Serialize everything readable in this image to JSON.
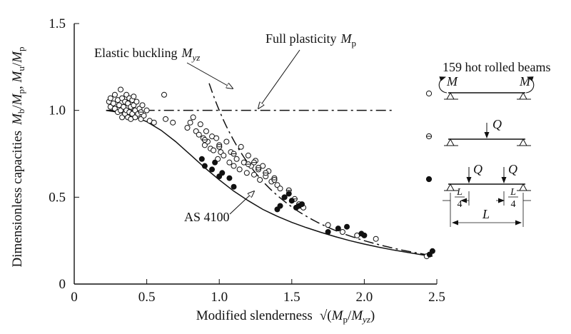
{
  "chart_data": {
    "type": "scatter",
    "title": "",
    "xlabel": "Modified slenderness √(Mp/Myz)",
    "ylabel": "Dimensionless capacities Mb/Mp, Mu/Mp",
    "xlabel_parts": {
      "text": "Modified slenderness",
      "root": "√(",
      "num": "M",
      "num_sub": "p",
      "slash": "/",
      "den": "M",
      "den_sub": "yz",
      "close": ")"
    },
    "ylabel_parts": {
      "text": "Dimensionless capacities",
      "a": "M",
      "a_sub": "b",
      "slash1": "/",
      "b": "M",
      "b_sub": "p",
      "comma": ", ",
      "c": "M",
      "c_sub": "u",
      "slash2": "/",
      "d": "M",
      "d_sub": "p"
    },
    "xlim": [
      0,
      2.5
    ],
    "ylim": [
      0,
      1.5
    ],
    "x_ticks": [
      {
        "value": 0,
        "label": "0"
      },
      {
        "value": 0.5,
        "label": "0.5"
      },
      {
        "value": 1.0,
        "label": "1.0"
      },
      {
        "value": 1.5,
        "label": "1.5"
      },
      {
        "value": 2.0,
        "label": "2.0"
      },
      {
        "value": 2.5,
        "label": "2.5"
      }
    ],
    "y_ticks": [
      {
        "value": 0,
        "label": "0"
      },
      {
        "value": 0.5,
        "label": "0.5"
      },
      {
        "value": 1.0,
        "label": "1.0"
      },
      {
        "value": 1.5,
        "label": "1.5"
      }
    ],
    "curves": {
      "full_plasticity": {
        "name": "Full plasticity Mp",
        "label_text": "Full plasticity",
        "label_var": "M",
        "label_sub": "p",
        "style": "dash-dot",
        "y": 1.0,
        "x_range": [
          0.22,
          2.2
        ]
      },
      "elastic_buckling": {
        "name": "Elastic buckling Myz",
        "label_text": "Elastic buckling",
        "label_var": "M",
        "label_sub": "yz",
        "style": "dash-dot",
        "x_range": [
          0.93,
          2.47
        ]
      },
      "as4100": {
        "name": "AS 4100",
        "label_text": "AS 4100",
        "style": "solid",
        "points": [
          [
            0.22,
            1.0
          ],
          [
            0.3,
            0.99
          ],
          [
            0.4,
            0.97
          ],
          [
            0.5,
            0.935
          ],
          [
            0.6,
            0.885
          ],
          [
            0.7,
            0.82
          ],
          [
            0.8,
            0.745
          ],
          [
            0.9,
            0.67
          ],
          [
            1.0,
            0.6
          ],
          [
            1.1,
            0.535
          ],
          [
            1.2,
            0.48
          ],
          [
            1.3,
            0.43
          ],
          [
            1.4,
            0.39
          ],
          [
            1.5,
            0.355
          ],
          [
            1.6,
            0.325
          ],
          [
            1.7,
            0.298
          ],
          [
            1.8,
            0.273
          ],
          [
            1.9,
            0.25
          ],
          [
            2.0,
            0.23
          ],
          [
            2.1,
            0.212
          ],
          [
            2.2,
            0.196
          ],
          [
            2.3,
            0.182
          ],
          [
            2.4,
            0.168
          ],
          [
            2.47,
            0.16
          ]
        ]
      }
    },
    "series": [
      {
        "name": "uniform moment",
        "marker": "open-circle",
        "points": [
          [
            0.24,
            1.05
          ],
          [
            0.25,
            1.02
          ],
          [
            0.25,
            1.07
          ],
          [
            0.27,
            1.04
          ],
          [
            0.28,
            1.01
          ],
          [
            0.28,
            1.09
          ],
          [
            0.3,
            0.99
          ],
          [
            0.3,
            1.06
          ],
          [
            0.31,
            1.03
          ],
          [
            0.32,
            1.0
          ],
          [
            0.32,
            1.12
          ],
          [
            0.33,
            0.96
          ],
          [
            0.33,
            1.07
          ],
          [
            0.34,
            1.02
          ],
          [
            0.35,
            0.98
          ],
          [
            0.35,
            1.05
          ],
          [
            0.36,
            1.0
          ],
          [
            0.36,
            1.09
          ],
          [
            0.37,
            0.96
          ],
          [
            0.37,
            1.04
          ],
          [
            0.38,
            1.07
          ],
          [
            0.38,
            0.99
          ],
          [
            0.39,
            1.02
          ],
          [
            0.39,
            0.95
          ],
          [
            0.4,
            1.06
          ],
          [
            0.4,
            0.98
          ],
          [
            0.41,
            1.03
          ],
          [
            0.41,
            1.08
          ],
          [
            0.42,
            0.96
          ],
          [
            0.42,
            1.0
          ],
          [
            0.43,
            1.05
          ],
          [
            0.44,
            0.98
          ],
          [
            0.45,
            1.01
          ],
          [
            0.46,
            0.95
          ],
          [
            0.47,
            1.03
          ],
          [
            0.48,
            0.97
          ],
          [
            0.5,
            1.0
          ],
          [
            0.52,
            0.94
          ],
          [
            0.55,
            0.93
          ],
          [
            0.62,
            1.09
          ],
          [
            0.63,
            0.95
          ],
          [
            0.68,
            0.93
          ],
          [
            0.78,
            0.9
          ],
          [
            0.8,
            0.93
          ],
          [
            0.82,
            0.96
          ],
          [
            0.84,
            0.88
          ],
          [
            0.86,
            0.86
          ],
          [
            0.87,
            0.92
          ],
          [
            0.89,
            0.84
          ],
          [
            0.9,
            0.8
          ],
          [
            0.91,
            0.88
          ],
          [
            0.92,
            0.82
          ],
          [
            0.94,
            0.78
          ],
          [
            0.95,
            0.85
          ],
          [
            0.96,
            0.77
          ],
          [
            0.98,
            0.84
          ],
          [
            0.99,
            0.72
          ],
          [
            1.0,
            0.8
          ],
          [
            1.01,
            0.76
          ],
          [
            1.03,
            0.74
          ],
          [
            1.05,
            0.82
          ],
          [
            1.07,
            0.7
          ],
          [
            1.08,
            0.76
          ],
          [
            1.1,
            0.68
          ],
          [
            1.12,
            0.72
          ],
          [
            1.14,
            0.66
          ],
          [
            1.15,
            0.79
          ],
          [
            1.17,
            0.7
          ],
          [
            1.19,
            0.64
          ],
          [
            1.2,
            0.74
          ],
          [
            1.22,
            0.68
          ],
          [
            1.24,
            0.63
          ],
          [
            1.25,
            0.71
          ],
          [
            1.27,
            0.66
          ],
          [
            1.28,
            0.6
          ],
          [
            1.3,
            0.68
          ],
          [
            1.32,
            0.62
          ],
          [
            1.34,
            0.65
          ],
          [
            1.36,
            0.59
          ],
          [
            1.38,
            0.61
          ],
          [
            1.4,
            0.57
          ],
          [
            1.42,
            0.55
          ],
          [
            1.45,
            0.5
          ],
          [
            1.5,
            0.48
          ],
          [
            1.55,
            0.46
          ],
          [
            1.58,
            0.44
          ],
          [
            1.75,
            0.34
          ],
          [
            1.85,
            0.3
          ],
          [
            1.95,
            0.28
          ],
          [
            2.08,
            0.26
          ],
          [
            2.43,
            0.16
          ]
        ]
      },
      {
        "name": "central concentrated load",
        "marker": "circle-bar",
        "points": [
          [
            0.46,
            0.99
          ],
          [
            0.9,
            0.83
          ],
          [
            1.0,
            0.79
          ],
          [
            1.1,
            0.75
          ],
          [
            1.2,
            0.69
          ],
          [
            1.24,
            0.7
          ],
          [
            1.27,
            0.67
          ],
          [
            1.32,
            0.64
          ],
          [
            1.38,
            0.6
          ],
          [
            1.48,
            0.54
          ],
          [
            1.52,
            0.49
          ]
        ]
      },
      {
        "name": "two quarter-point loads",
        "marker": "filled-circle",
        "points": [
          [
            0.88,
            0.72
          ],
          [
            0.9,
            0.68
          ],
          [
            0.95,
            0.66
          ],
          [
            0.97,
            0.7
          ],
          [
            1.0,
            0.62
          ],
          [
            1.02,
            0.64
          ],
          [
            1.07,
            0.61
          ],
          [
            1.1,
            0.56
          ],
          [
            1.4,
            0.43
          ],
          [
            1.42,
            0.45
          ],
          [
            1.45,
            0.5
          ],
          [
            1.48,
            0.52
          ],
          [
            1.5,
            0.48
          ],
          [
            1.53,
            0.44
          ],
          [
            1.55,
            0.45
          ],
          [
            1.57,
            0.46
          ],
          [
            1.75,
            0.3
          ],
          [
            1.82,
            0.32
          ],
          [
            1.88,
            0.33
          ],
          [
            1.98,
            0.29
          ],
          [
            2.0,
            0.28
          ],
          [
            2.45,
            0.17
          ],
          [
            2.47,
            0.19
          ]
        ]
      }
    ],
    "legend": {
      "title": "159 hot rolled beams",
      "moment_label": "M",
      "load_label": "Q",
      "span_label": "L",
      "quarter_num": "L",
      "quarter_den": "4"
    }
  }
}
